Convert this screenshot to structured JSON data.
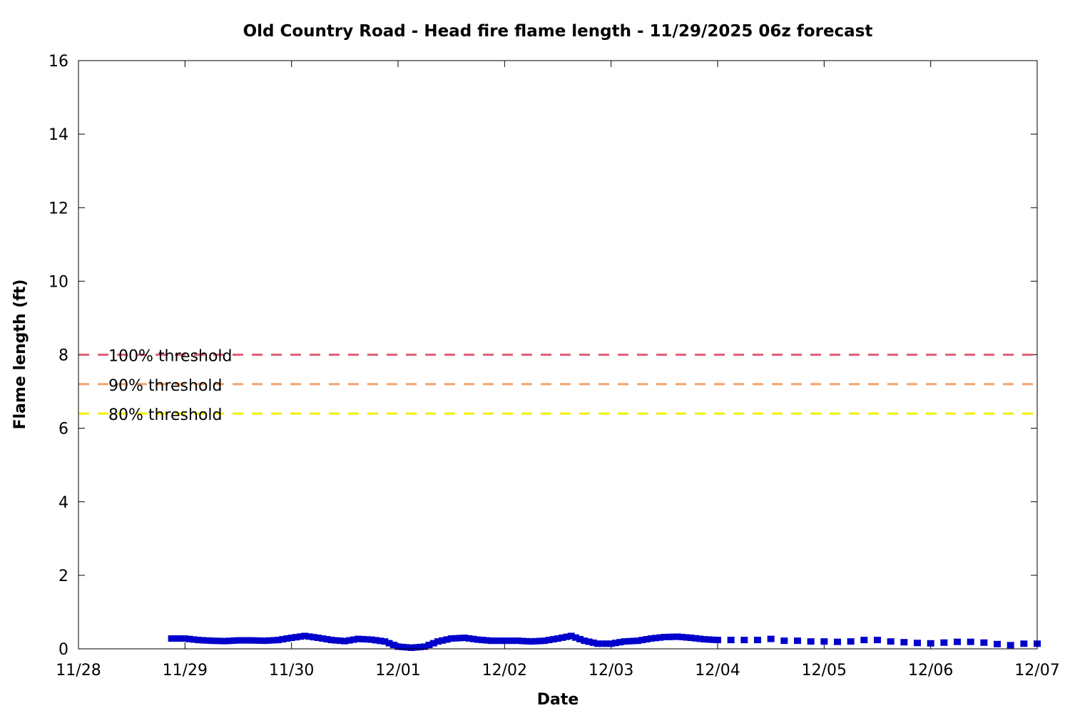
{
  "chart_data": {
    "type": "scatter",
    "title": "Old Country Road - Head fire flame length - 11/29/2025 06z forecast",
    "xlabel": "Date",
    "ylabel": "Flame length (ft)",
    "xlim": [
      "11/28",
      "12/07"
    ],
    "ylim": [
      0,
      16
    ],
    "x_ticks": [
      "11/28",
      "11/29",
      "11/30",
      "12/01",
      "12/02",
      "12/03",
      "12/04",
      "12/05",
      "12/06",
      "12/07"
    ],
    "y_ticks": [
      "0",
      "2",
      "4",
      "6",
      "8",
      "10",
      "12",
      "14",
      "16"
    ],
    "grid": false,
    "thresholds": [
      {
        "name": "100% threshold",
        "value": 8.0,
        "color": "#e06078"
      },
      {
        "name": "90% threshold",
        "value": 7.2,
        "color": "#f4a46e"
      },
      {
        "name": "80% threshold",
        "value": 6.4,
        "color": "#f0f000"
      }
    ],
    "series": [
      {
        "marker_color": "#0000cc",
        "x": [
          "11/28 21:00",
          "11/29 00:00",
          "11/29 03:00",
          "11/29 06:00",
          "11/29 09:00",
          "11/29 12:00",
          "11/29 15:00",
          "11/29 18:00",
          "11/29 21:00",
          "11/30 00:00",
          "11/30 03:00",
          "11/30 06:00",
          "11/30 09:00",
          "11/30 12:00",
          "11/30 15:00",
          "11/30 18:00",
          "11/30 21:00",
          "12/01 00:00",
          "12/01 03:00",
          "12/01 06:00",
          "12/01 09:00",
          "12/01 12:00",
          "12/01 15:00",
          "12/01 18:00",
          "12/01 21:00",
          "12/02 00:00",
          "12/02 03:00",
          "12/02 06:00",
          "12/02 09:00",
          "12/02 12:00",
          "12/02 15:00",
          "12/02 18:00",
          "12/02 21:00",
          "12/03 00:00",
          "12/03 03:00",
          "12/03 06:00",
          "12/03 09:00",
          "12/03 12:00",
          "12/03 15:00",
          "12/03 18:00",
          "12/03 21:00",
          "12/04 00:00",
          "12/04 03:00",
          "12/04 06:00",
          "12/04 09:00",
          "12/04 12:00",
          "12/04 15:00",
          "12/04 18:00",
          "12/04 21:00",
          "12/05 00:00",
          "12/05 03:00",
          "12/05 06:00",
          "12/05 09:00",
          "12/05 12:00",
          "12/05 15:00",
          "12/05 18:00",
          "12/05 21:00",
          "12/06 00:00",
          "12/06 03:00",
          "12/06 06:00",
          "12/06 09:00",
          "12/06 12:00",
          "12/06 15:00",
          "12/06 18:00",
          "12/06 21:00",
          "12/07 00:00"
        ],
        "y": [
          0.28,
          0.28,
          0.24,
          0.22,
          0.21,
          0.23,
          0.23,
          0.22,
          0.24,
          0.3,
          0.35,
          0.3,
          0.24,
          0.21,
          0.27,
          0.25,
          0.2,
          0.06,
          0.03,
          0.06,
          0.2,
          0.28,
          0.3,
          0.25,
          0.22,
          0.22,
          0.22,
          0.2,
          0.22,
          0.28,
          0.35,
          0.22,
          0.14,
          0.14,
          0.2,
          0.22,
          0.28,
          0.32,
          0.33,
          0.3,
          0.26,
          0.24,
          0.24,
          0.24,
          0.24,
          0.27,
          0.22,
          0.22,
          0.2,
          0.2,
          0.19,
          0.2,
          0.24,
          0.24,
          0.2,
          0.18,
          0.16,
          0.15,
          0.17,
          0.19,
          0.19,
          0.17,
          0.13,
          0.1,
          0.14,
          0.14
        ]
      }
    ]
  }
}
